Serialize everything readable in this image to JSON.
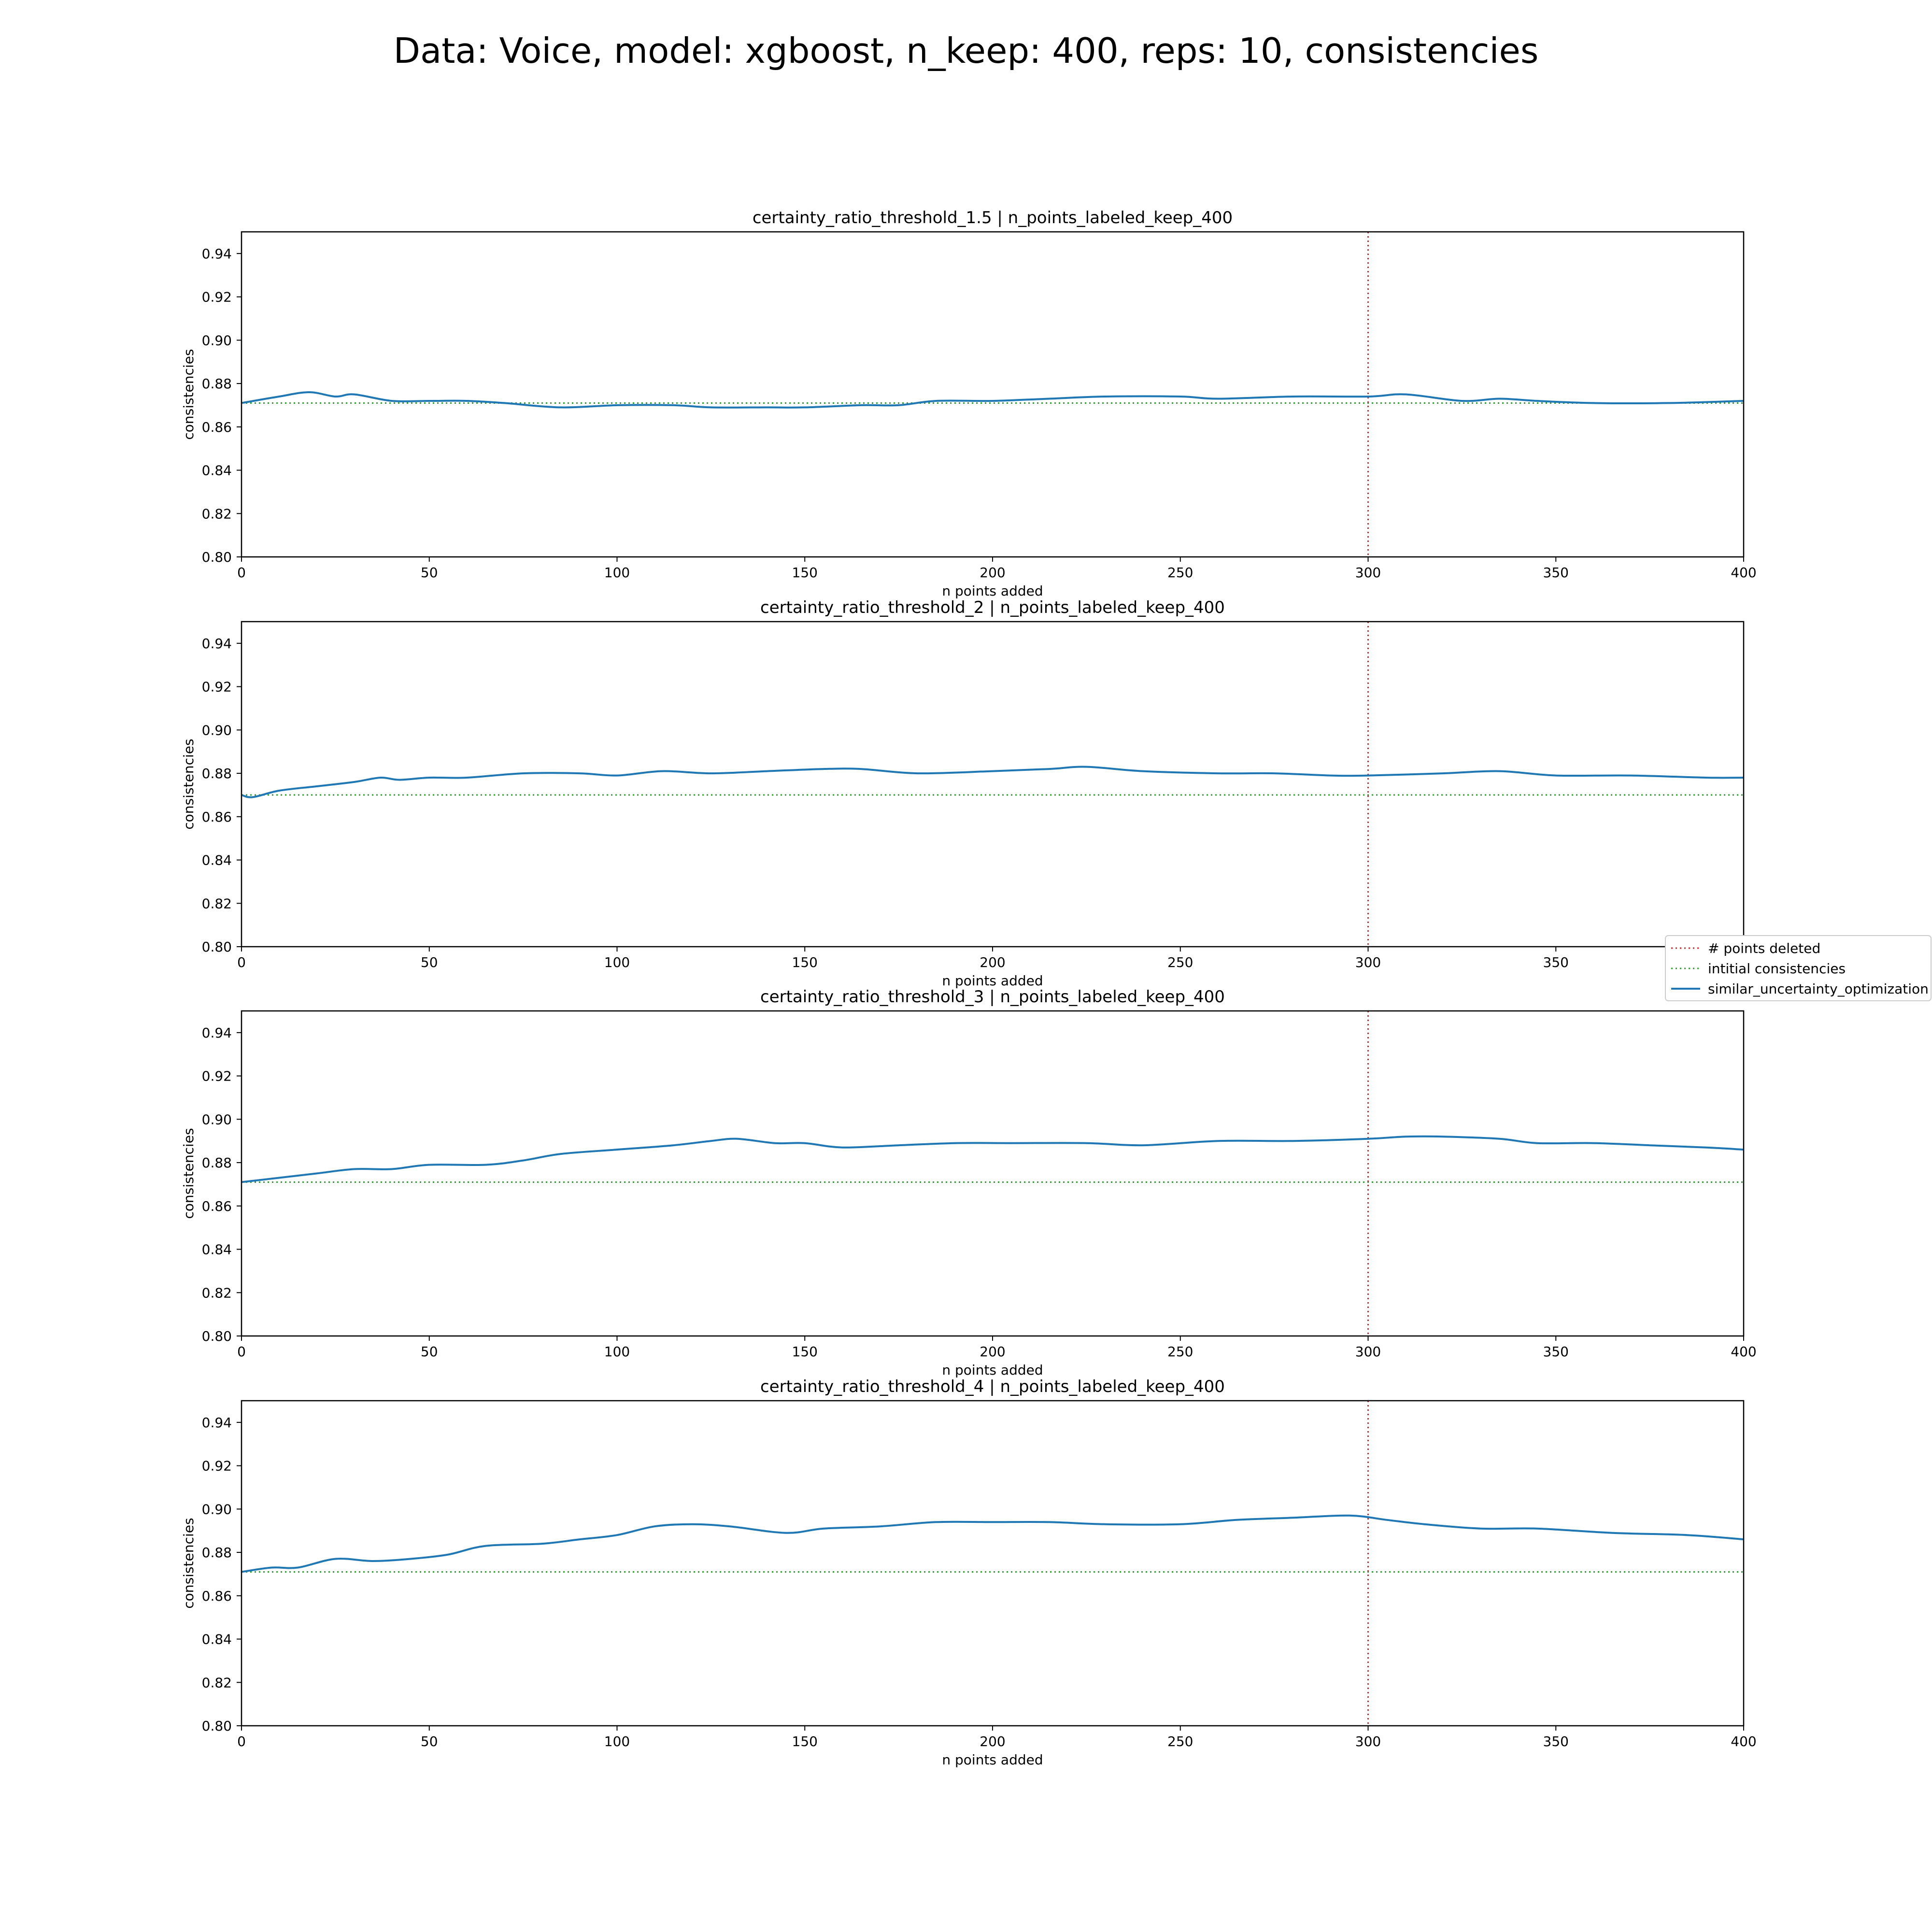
{
  "figure": {
    "suptitle": "Data: Voice, model: xgboost, n_keep: 400, reps: 10, consistencies"
  },
  "legend": {
    "items": [
      {
        "label": "# points deleted",
        "color": "#d62728",
        "style": "dotted"
      },
      {
        "label": "intitial consistencies",
        "color": "#2ca02c",
        "style": "dotted"
      },
      {
        "label": "similar_uncertainty_optimization",
        "color": "#1f77b4",
        "style": "solid"
      }
    ]
  },
  "chart_data": [
    {
      "type": "line",
      "title": "certainty_ratio_threshold_1.5 | n_points_labeled_keep_400",
      "xlabel": "n points added",
      "ylabel": "consistencies",
      "xlim": [
        0,
        400
      ],
      "ylim": [
        0.8,
        0.95
      ],
      "xticks": [
        0,
        50,
        100,
        150,
        200,
        250,
        300,
        350,
        400
      ],
      "yticks": [
        0.8,
        0.82,
        0.84,
        0.86,
        0.88,
        0.9,
        0.92,
        0.94
      ],
      "vline_x": 300,
      "hline_y": 0.871,
      "series": [
        {
          "name": "similar_uncertainty_optimization",
          "x": [
            0,
            10,
            18,
            25,
            30,
            40,
            50,
            60,
            70,
            85,
            100,
            115,
            125,
            140,
            150,
            165,
            175,
            185,
            200,
            215,
            230,
            250,
            260,
            280,
            300,
            310,
            325,
            335,
            345,
            360,
            380,
            400
          ],
          "y": [
            0.871,
            0.874,
            0.876,
            0.874,
            0.875,
            0.872,
            0.872,
            0.872,
            0.871,
            0.869,
            0.87,
            0.87,
            0.869,
            0.869,
            0.869,
            0.87,
            0.87,
            0.872,
            0.872,
            0.873,
            0.874,
            0.874,
            0.873,
            0.874,
            0.874,
            0.875,
            0.872,
            0.873,
            0.872,
            0.871,
            0.871,
            0.872
          ]
        }
      ]
    },
    {
      "type": "line",
      "title": "certainty_ratio_threshold_2 | n_points_labeled_keep_400",
      "xlabel": "n points added",
      "ylabel": "consistencies",
      "xlim": [
        0,
        400
      ],
      "ylim": [
        0.8,
        0.95
      ],
      "xticks": [
        0,
        50,
        100,
        150,
        200,
        250,
        300,
        350,
        400
      ],
      "yticks": [
        0.8,
        0.82,
        0.84,
        0.86,
        0.88,
        0.9,
        0.92,
        0.94
      ],
      "vline_x": 300,
      "hline_y": 0.87,
      "series": [
        {
          "name": "similar_uncertainty_optimization",
          "x": [
            0,
            3,
            10,
            20,
            30,
            37,
            42,
            50,
            60,
            75,
            90,
            100,
            112,
            125,
            140,
            155,
            165,
            180,
            200,
            215,
            225,
            240,
            260,
            275,
            290,
            300,
            320,
            335,
            350,
            370,
            390,
            400
          ],
          "y": [
            0.87,
            0.869,
            0.872,
            0.874,
            0.876,
            0.878,
            0.877,
            0.878,
            0.878,
            0.88,
            0.88,
            0.879,
            0.881,
            0.88,
            0.881,
            0.882,
            0.882,
            0.88,
            0.881,
            0.882,
            0.883,
            0.881,
            0.88,
            0.88,
            0.879,
            0.879,
            0.88,
            0.881,
            0.879,
            0.879,
            0.878,
            0.878
          ]
        }
      ]
    },
    {
      "type": "line",
      "title": "certainty_ratio_threshold_3 | n_points_labeled_keep_400",
      "xlabel": "n points added",
      "ylabel": "consistencies",
      "xlim": [
        0,
        400
      ],
      "ylim": [
        0.8,
        0.95
      ],
      "xticks": [
        0,
        50,
        100,
        150,
        200,
        250,
        300,
        350,
        400
      ],
      "yticks": [
        0.8,
        0.82,
        0.84,
        0.86,
        0.88,
        0.9,
        0.92,
        0.94
      ],
      "vline_x": 300,
      "hline_y": 0.871,
      "series": [
        {
          "name": "similar_uncertainty_optimization",
          "x": [
            0,
            10,
            20,
            30,
            40,
            50,
            65,
            75,
            85,
            100,
            115,
            125,
            132,
            142,
            150,
            160,
            175,
            190,
            205,
            225,
            240,
            260,
            280,
            300,
            310,
            320,
            335,
            345,
            360,
            375,
            390,
            400
          ],
          "y": [
            0.871,
            0.873,
            0.875,
            0.877,
            0.877,
            0.879,
            0.879,
            0.881,
            0.884,
            0.886,
            0.888,
            0.89,
            0.891,
            0.889,
            0.889,
            0.887,
            0.888,
            0.889,
            0.889,
            0.889,
            0.888,
            0.89,
            0.89,
            0.891,
            0.892,
            0.892,
            0.891,
            0.889,
            0.889,
            0.888,
            0.887,
            0.886
          ]
        }
      ]
    },
    {
      "type": "line",
      "title": "certainty_ratio_threshold_4 | n_points_labeled_keep_400",
      "xlabel": "n points added",
      "ylabel": "consistencies",
      "xlim": [
        0,
        400
      ],
      "ylim": [
        0.8,
        0.95
      ],
      "xticks": [
        0,
        50,
        100,
        150,
        200,
        250,
        300,
        350,
        400
      ],
      "yticks": [
        0.8,
        0.82,
        0.84,
        0.86,
        0.88,
        0.9,
        0.92,
        0.94
      ],
      "vline_x": 300,
      "hline_y": 0.871,
      "series": [
        {
          "name": "similar_uncertainty_optimization",
          "x": [
            0,
            8,
            15,
            25,
            35,
            45,
            55,
            65,
            80,
            90,
            100,
            110,
            120,
            130,
            145,
            155,
            170,
            185,
            200,
            215,
            230,
            250,
            265,
            280,
            295,
            305,
            315,
            330,
            345,
            365,
            385,
            400
          ],
          "y": [
            0.871,
            0.873,
            0.873,
            0.877,
            0.876,
            0.877,
            0.879,
            0.883,
            0.884,
            0.886,
            0.888,
            0.892,
            0.893,
            0.892,
            0.889,
            0.891,
            0.892,
            0.894,
            0.894,
            0.894,
            0.893,
            0.893,
            0.895,
            0.896,
            0.897,
            0.895,
            0.893,
            0.891,
            0.891,
            0.889,
            0.888,
            0.886
          ]
        }
      ]
    }
  ]
}
